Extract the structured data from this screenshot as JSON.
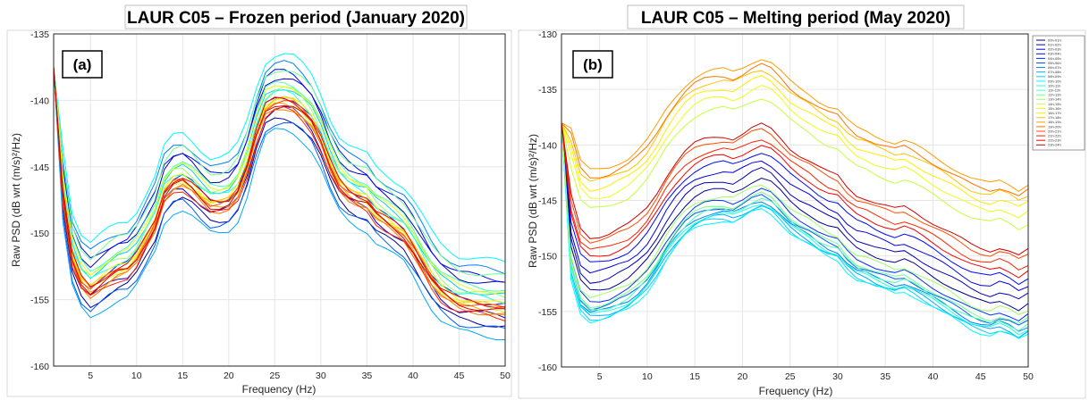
{
  "figure": {
    "colors": [
      "#00008f",
      "#0000b7",
      "#0000df",
      "#0008ff",
      "#0030ff",
      "#0058ff",
      "#0080ff",
      "#00a8ff",
      "#00d0ff",
      "#00f8ff",
      "#22ffdd",
      "#4affb5",
      "#72ff8d",
      "#9aff65",
      "#c2ff3d",
      "#eaff15",
      "#ffec00",
      "#ffc400",
      "#ff9c00",
      "#ff7400",
      "#ff4c00",
      "#ff2400",
      "#f80000",
      "#d00000"
    ],
    "legend_entries": [
      "00h-01h",
      "01h-02h",
      "02h-03h",
      "03h-04h",
      "04h-05h",
      "05h-06h",
      "06h-07h",
      "07h-08h",
      "08h-09h",
      "09h-10h",
      "10h-11h",
      "11h-12h",
      "12h-13h",
      "13h-14h",
      "14h-15h",
      "15h-16h",
      "16h-17h",
      "17h-18h",
      "18h-19h",
      "19h-20h",
      "20h-21h",
      "21h-22h",
      "22h-23h",
      "23h-24h"
    ]
  },
  "chart_data": [
    {
      "type": "line",
      "panel_label": "(a)",
      "title": "LAUR C05 – Frozen period (January 2020)",
      "xlabel": "Frequency (Hz)",
      "ylabel": "Raw PSD (dB wrt (m/s)²/Hz)",
      "xlim": [
        1,
        50
      ],
      "ylim": [
        -160,
        -135
      ],
      "xticks": [
        5,
        10,
        15,
        20,
        25,
        30,
        35,
        40,
        45,
        50
      ],
      "yticks": [
        -160,
        -155,
        -150,
        -145,
        -140,
        -135
      ],
      "grid": true,
      "x": [
        1,
        2,
        3,
        4,
        5,
        6,
        7,
        8,
        9,
        10,
        11,
        12,
        13,
        14,
        15,
        16,
        17,
        18,
        19,
        20,
        21,
        22,
        23,
        24,
        25,
        26,
        27,
        28,
        29,
        30,
        31,
        32,
        33,
        34,
        35,
        36,
        37,
        38,
        39,
        40,
        41,
        42,
        43,
        44,
        45,
        46,
        47,
        48,
        49,
        50
      ],
      "base_curve": [
        -137.5,
        -147,
        -151.8,
        -153.5,
        -154.2,
        -153.7,
        -153.2,
        -152.8,
        -152.6,
        -151.8,
        -150.5,
        -149.2,
        -147,
        -146.2,
        -146,
        -146.5,
        -147.2,
        -147.8,
        -147.8,
        -147.6,
        -146.8,
        -145,
        -142.5,
        -140.6,
        -140.1,
        -140,
        -140.2,
        -140.8,
        -141.6,
        -143,
        -144.8,
        -146.2,
        -146.9,
        -147.3,
        -147.6,
        -148.5,
        -149,
        -149.5,
        -150,
        -151,
        -152.2,
        -153.4,
        -154.3,
        -154.8,
        -155.2,
        -155.3,
        -155.4,
        -155.5,
        -155.6,
        -155.7
      ],
      "hourly_offsets": [
        -1.3,
        1.8,
        -0.6,
        2.2,
        0.3,
        -1.6,
        2.8,
        -2.2,
        1.0,
        3.5,
        0.6,
        1.4,
        2.4,
        0.9,
        0.0,
        1.2,
        0.3,
        0.1,
        -0.3,
        -0.5,
        0.0,
        -0.7,
        0.2,
        -0.2
      ]
    },
    {
      "type": "line",
      "panel_label": "(b)",
      "title": "LAUR C05 – Melting period (May 2020)",
      "xlabel": "Frequency (Hz)",
      "ylabel": "Raw PSD (dB wrt (m/s)²/Hz)",
      "xlim": [
        1,
        50
      ],
      "ylim": [
        -160,
        -130
      ],
      "xticks": [
        5,
        10,
        15,
        20,
        25,
        30,
        35,
        40,
        45,
        50
      ],
      "yticks": [
        -160,
        -155,
        -150,
        -145,
        -140,
        -135,
        -130
      ],
      "grid": true,
      "x": [
        1,
        2,
        3,
        4,
        5,
        6,
        7,
        8,
        9,
        10,
        11,
        12,
        13,
        14,
        15,
        16,
        17,
        18,
        19,
        20,
        21,
        22,
        23,
        24,
        25,
        26,
        27,
        28,
        29,
        30,
        31,
        32,
        33,
        34,
        35,
        36,
        37,
        38,
        39,
        40,
        41,
        42,
        43,
        44,
        45,
        46,
        47,
        48,
        49,
        50
      ],
      "base_curve": [
        -138,
        -147.5,
        -150.5,
        -151.3,
        -151.2,
        -151,
        -150.6,
        -150.2,
        -149.5,
        -148.6,
        -147.3,
        -145.8,
        -144.6,
        -143.6,
        -142.9,
        -142.5,
        -142.3,
        -142.2,
        -142.4,
        -142,
        -141.5,
        -141.2,
        -141.6,
        -142.4,
        -143.3,
        -143.9,
        -144.4,
        -145,
        -145.5,
        -145.8,
        -146.8,
        -147.5,
        -147.8,
        -148.2,
        -148.5,
        -148.8,
        -148.6,
        -149,
        -149.5,
        -150,
        -150.5,
        -151,
        -151.5,
        -152,
        -152.3,
        -152.5,
        -152.2,
        -152.5,
        -153,
        -152.5
      ],
      "hourly_offsets": [
        -1.8,
        -1.0,
        -0.2,
        0.6,
        -2.8,
        -3.4,
        -3.8,
        -4.2,
        -4.4,
        -4.6,
        -4.0,
        -3.6,
        -3.2,
        -2.4,
        5.5,
        6.5,
        7.3,
        8.0,
        9.0,
        8.4,
        2.6,
        1.8,
        1.2,
        3.0
      ]
    }
  ]
}
